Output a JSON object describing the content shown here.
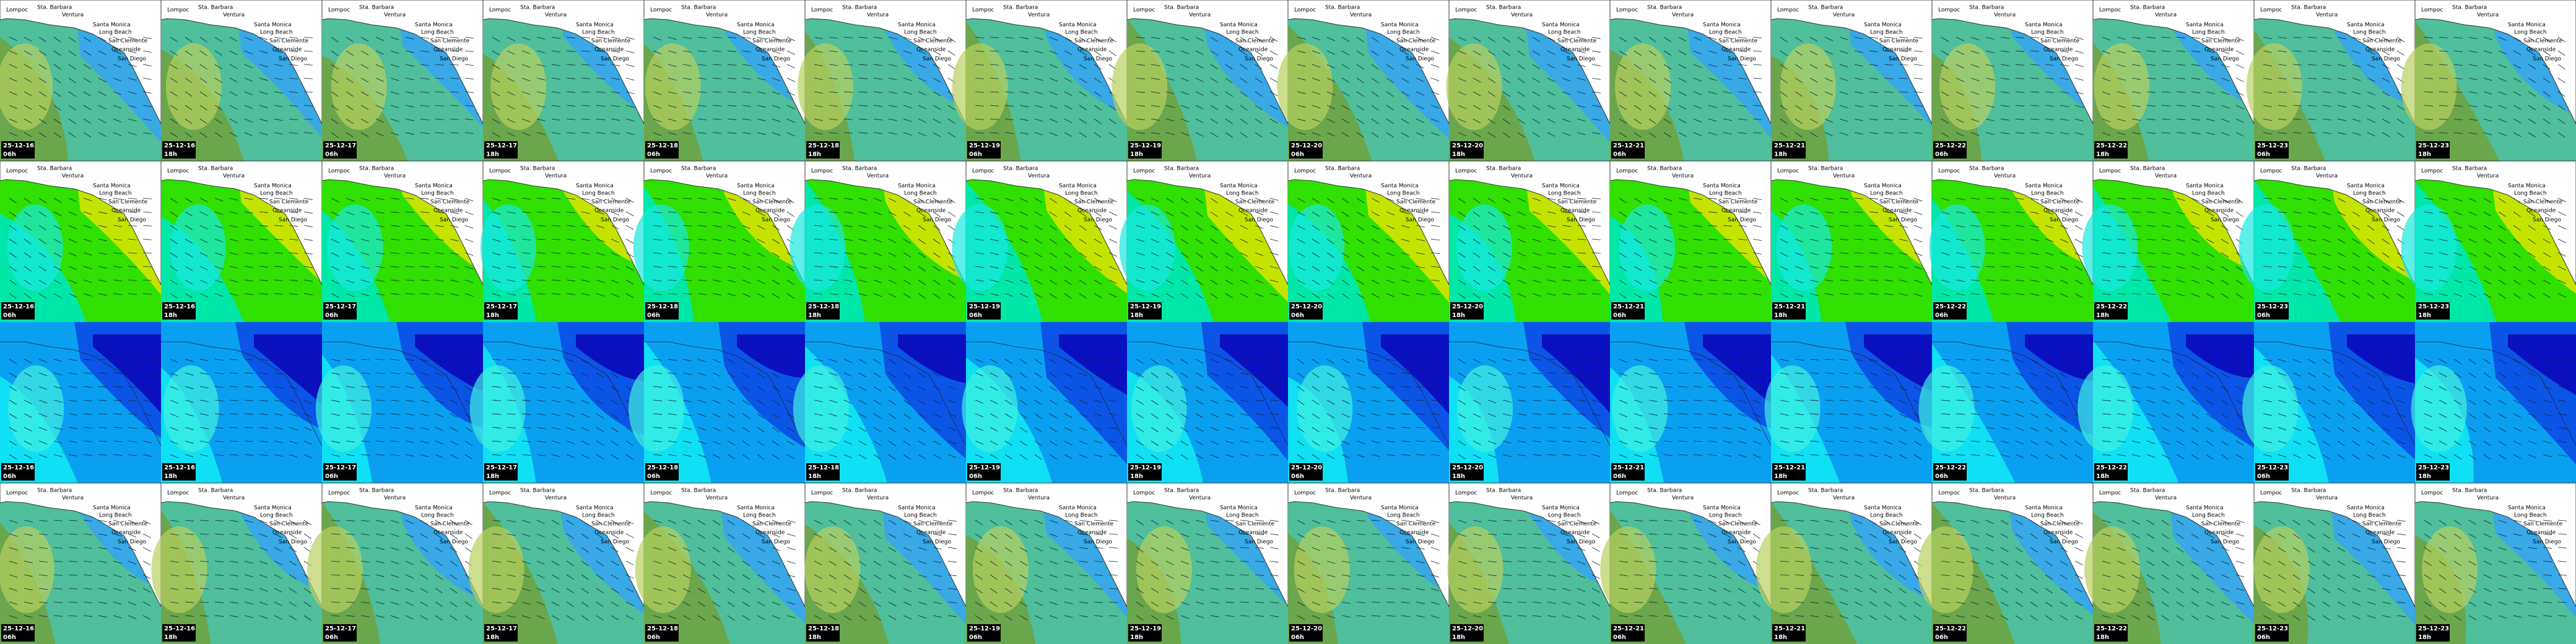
{
  "columns": [
    {
      "date": "25-12-16",
      "time": "06h"
    },
    {
      "date": "25-12-16",
      "time": "18h"
    },
    {
      "date": "25-12-17",
      "time": "06h"
    },
    {
      "date": "25-12-17",
      "time": "18h"
    },
    {
      "date": "25-12-18",
      "time": "06h"
    },
    {
      "date": "25-12-18",
      "time": "18h"
    },
    {
      "date": "25-12-19",
      "time": "06h"
    },
    {
      "date": "25-12-19",
      "time": "18h"
    },
    {
      "date": "25-12-20",
      "time": "06h"
    },
    {
      "date": "25-12-20",
      "time": "18h"
    },
    {
      "date": "25-12-21",
      "time": "06h"
    },
    {
      "date": "25-12-21",
      "time": "18h"
    },
    {
      "date": "25-12-22",
      "time": "06h"
    },
    {
      "date": "25-12-22",
      "time": "18h"
    },
    {
      "date": "25-12-23",
      "time": "06h"
    },
    {
      "date": "25-12-23",
      "time": "18h"
    }
  ],
  "places": [
    "Lompoc",
    "Sta. Barbara",
    "Ventura",
    "Santa Monica",
    "Long Beach",
    "San Clemente",
    "Oceanside",
    "San Diego"
  ]
}
